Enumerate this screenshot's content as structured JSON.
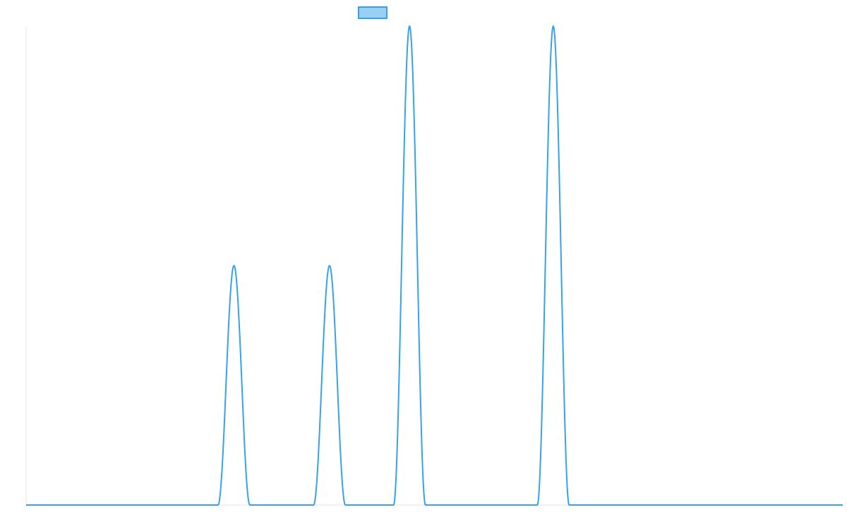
{
  "chart_data": {
    "type": "line",
    "legend": {
      "placement": "top-center",
      "entries": [
        {
          "label": "",
          "swatch_fill": "#9ad0f5",
          "swatch_stroke": "#36a2eb"
        }
      ]
    },
    "grid": false,
    "x_axis": {
      "visible": true,
      "tick_labels": [],
      "xlim": [
        0,
        1
      ]
    },
    "y_axis": {
      "visible": true,
      "tick_labels": [],
      "ylim": [
        0,
        1
      ]
    },
    "series": [
      {
        "color": "#36a2eb",
        "line_width": 2,
        "peaks": [
          {
            "center": 0.2545,
            "half_width": 0.0195,
            "height": 0.5
          },
          {
            "center": 0.3715,
            "half_width": 0.0195,
            "height": 0.5
          },
          {
            "center": 0.4695,
            "half_width": 0.0195,
            "height": 1.0
          },
          {
            "center": 0.6455,
            "half_width": 0.0195,
            "height": 1.0
          }
        ]
      }
    ]
  }
}
